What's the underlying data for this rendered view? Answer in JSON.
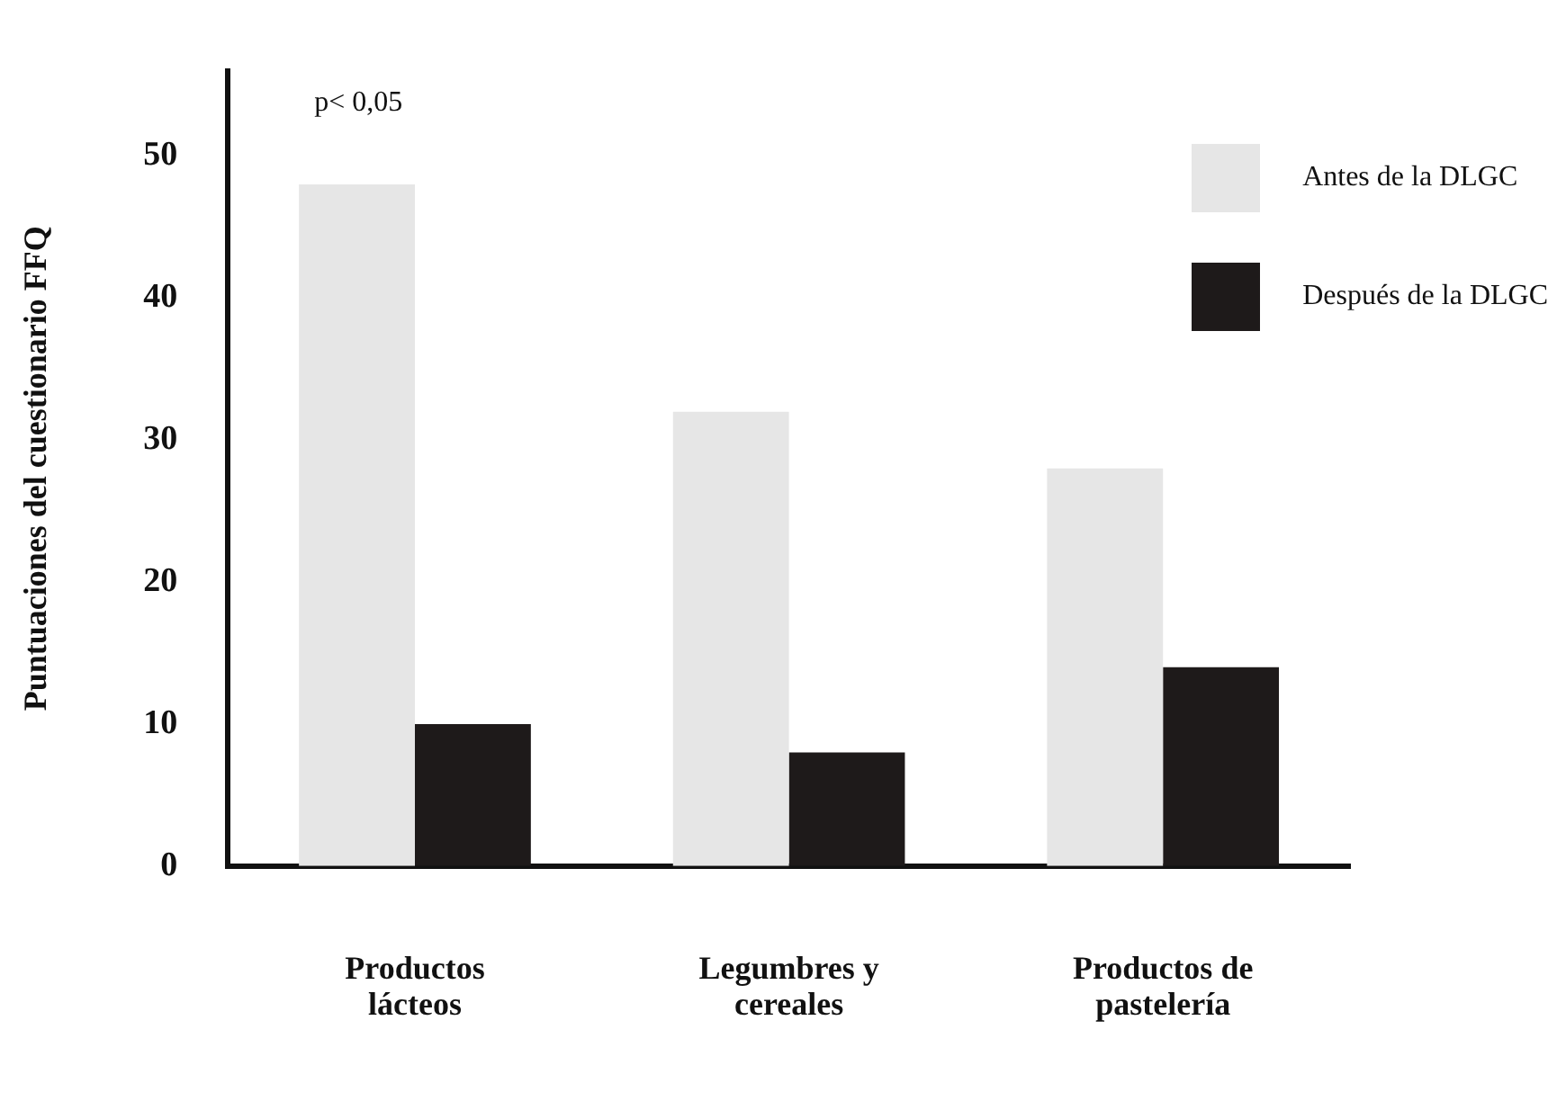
{
  "chart_data": {
    "type": "bar",
    "ylabel": "Puntuaciones del cuestionario FFQ",
    "categories": [
      "Productos lácteos",
      "Legumbres y cereales",
      "Productos de pastelería"
    ],
    "series": [
      {
        "name": "Antes de la DLGC",
        "color": "#e6e6e6",
        "values": [
          48,
          32,
          28
        ]
      },
      {
        "name": "Después de la DLGC",
        "color": "#1e1a1a",
        "values": [
          10,
          8,
          14
        ]
      }
    ],
    "ylim": [
      0,
      56
    ],
    "yticks": [
      0,
      10,
      20,
      30,
      40,
      50
    ],
    "grid": false,
    "legend": "top right",
    "annotations": [
      "p< 0,05"
    ]
  }
}
